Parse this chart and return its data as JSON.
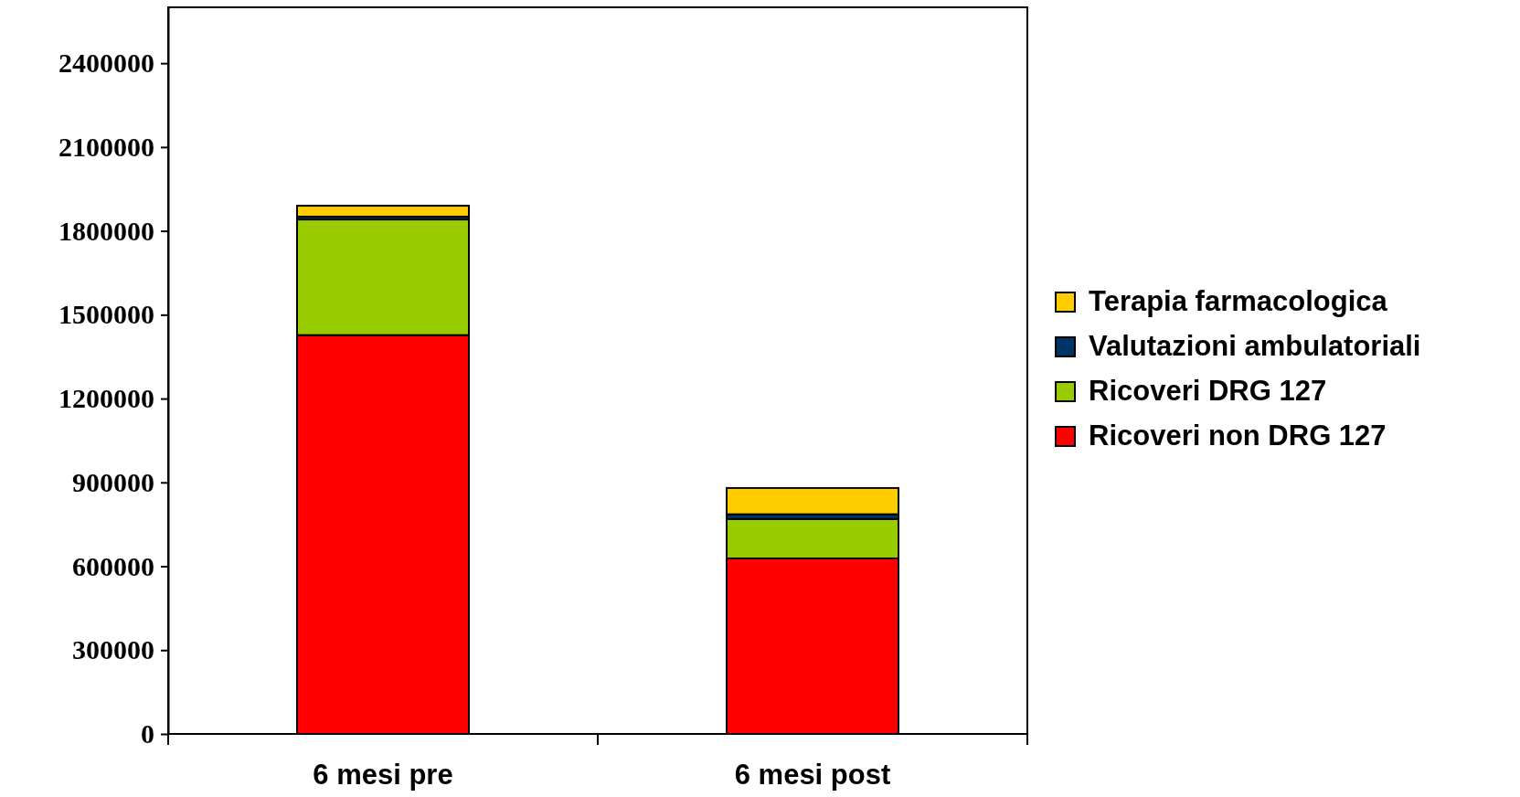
{
  "chart_data": {
    "type": "bar",
    "stacked": true,
    "categories": [
      "6 mesi pre",
      "6 mesi post"
    ],
    "series": [
      {
        "name": "Ricoveri non DRG 127",
        "color": "#ff0000",
        "values": [
          1427000,
          628000
        ]
      },
      {
        "name": "Ricoveri DRG 127",
        "color": "#99cc00",
        "values": [
          414000,
          141000
        ]
      },
      {
        "name": "Valutazioni ambulatoriali",
        "color": "#003366",
        "values": [
          10000,
          17000
        ]
      },
      {
        "name": "Terapia farmacologica",
        "color": "#ffcc00",
        "values": [
          39000,
          94000
        ]
      }
    ],
    "ylim": [
      0,
      2600000
    ],
    "yticks": [
      0,
      300000,
      600000,
      900000,
      1200000,
      1500000,
      1800000,
      2100000,
      2400000
    ],
    "legend": "right",
    "grid": false
  }
}
